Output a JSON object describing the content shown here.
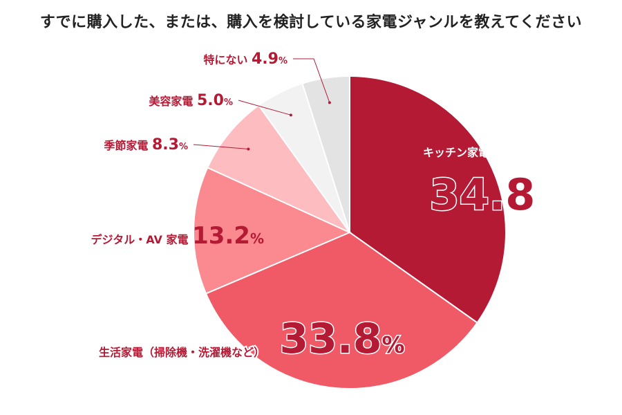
{
  "chart_data": {
    "type": "pie",
    "title": "すでに購入した、または、購入を検討している家電ジャンルを教えてください",
    "unit": "%",
    "slices": [
      {
        "label": "キッチン家電",
        "value": 34.8,
        "color": "#b51a35"
      },
      {
        "label": "生活家電（掃除機・洗濯機など）",
        "value": 33.8,
        "color": "#ef5a66"
      },
      {
        "label": "デジタル・AV 家電",
        "value": 13.2,
        "color": "#fb8990"
      },
      {
        "label": "季節家電",
        "value": 8.3,
        "color": "#fcbcc0"
      },
      {
        "label": "美容家電",
        "value": 5.0,
        "color": "#f2f2f2"
      },
      {
        "label": "特にない",
        "value": 4.9,
        "color": "#e3e3e3"
      }
    ],
    "label_color": "#b51a35"
  }
}
